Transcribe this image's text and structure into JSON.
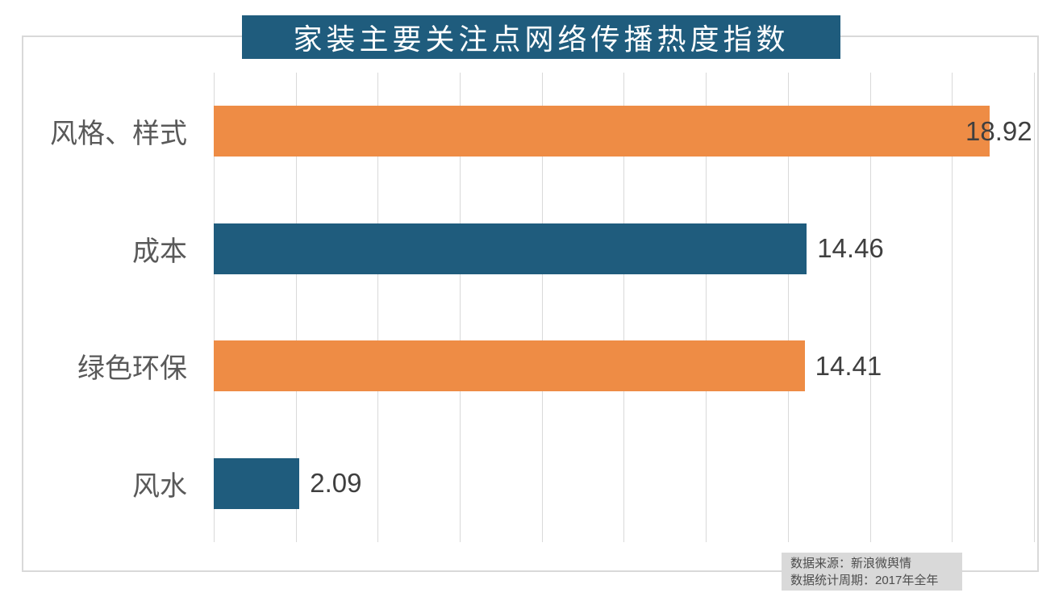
{
  "title": "家装主要关注点网络传播热度指数",
  "source": {
    "line1": "数据来源：新浪微舆情",
    "line2": "数据统计周期：2017年全年"
  },
  "colors": {
    "orange": "#ee8c45",
    "teal": "#1f5c7d",
    "title_bg": "#1f5c7d",
    "title_text": "#ffffff",
    "category_text": "#595959",
    "value_text": "#3f3f3f",
    "gridline": "#d9d9d9",
    "border": "#d9d9d9",
    "source_bg": "#d9d9d9"
  },
  "chart_data": {
    "type": "bar",
    "orientation": "horizontal",
    "title": "家装主要关注点网络传播热度指数",
    "categories": [
      "风格、样式",
      "成本",
      "绿色环保",
      "风水"
    ],
    "values": [
      18.92,
      14.46,
      14.41,
      2.09
    ],
    "value_labels": [
      "18.92",
      "14.46",
      "14.41",
      "2.09"
    ],
    "bar_colors": [
      "#ee8c45",
      "#1f5c7d",
      "#ee8c45",
      "#1f5c7d"
    ],
    "xlabel": "",
    "ylabel": "",
    "xlim": [
      0,
      20.12
    ],
    "x_ticks": [
      0,
      2,
      4,
      6,
      8,
      10,
      12,
      14,
      16,
      18,
      20
    ],
    "grid": true,
    "tick_labels_visible": false,
    "legend": "none",
    "annotation": "数据来源：新浪微舆情\n数据统计周期：2017年全年"
  }
}
